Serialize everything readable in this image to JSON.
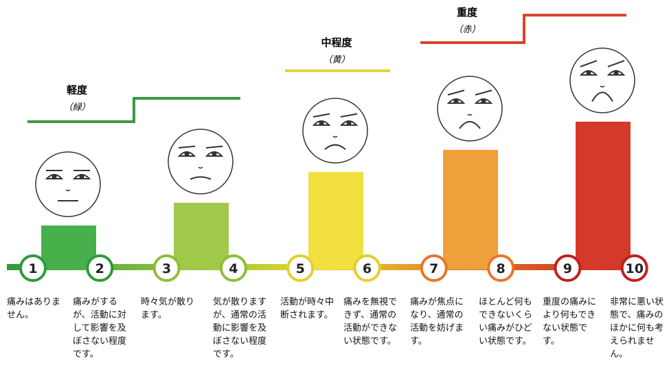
{
  "groups": [
    {
      "title": "軽度",
      "color_label": "（緑）"
    },
    {
      "title": "中程度",
      "color_label": "（黄）"
    },
    {
      "title": "重度",
      "color_label": "（赤）"
    }
  ],
  "levels": [
    {
      "number": 1,
      "description": "痛みはありません。"
    },
    {
      "number": 2,
      "description": "痛みがするが、活動に対して影響を及ぼさない程度です。"
    },
    {
      "number": 3,
      "description": "時々気が散ります。"
    },
    {
      "number": 4,
      "description": "気が散りますが、通常の活動に影響を及ぼさない程度です。"
    },
    {
      "number": 5,
      "description": "活動が時々中断されます。"
    },
    {
      "number": 6,
      "description": "痛みを無視できず、通常の活動ができない状態です。"
    },
    {
      "number": 7,
      "description": "痛みが焦点になり、通常の活動を妨げます。"
    },
    {
      "number": 8,
      "description": "ほとんど何もできないくらい痛みがひどい状態です。"
    },
    {
      "number": 9,
      "description": "重度の痛みにより何もできない状態です。"
    },
    {
      "number": 10,
      "description": "非常に悪い状態で、痛みのほかに何も考えられません。"
    }
  ]
}
